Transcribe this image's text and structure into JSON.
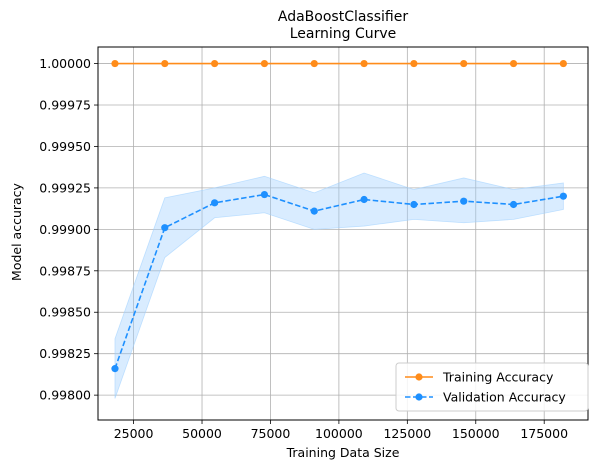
{
  "chart_data": {
    "type": "line",
    "title": "AdaBoostClassifier\n Learning Curve",
    "xlabel": "Training Data Size",
    "ylabel": "Model accuracy",
    "xlim": [
      12000,
      191000
    ],
    "ylim": [
      0.99785,
      1.0001
    ],
    "xticks": [
      25000,
      50000,
      75000,
      100000,
      125000,
      150000,
      175000
    ],
    "yticks": [
      0.998,
      0.99825,
      0.9985,
      0.99875,
      0.999,
      0.99925,
      0.9995,
      0.99975,
      1.0
    ],
    "xtick_labels": [
      "25000",
      "50000",
      "75000",
      "100000",
      "125000",
      "150000",
      "175000"
    ],
    "ytick_labels": [
      "0.99800",
      "0.99825",
      "0.99850",
      "0.99875",
      "0.99900",
      "0.99925",
      "0.99950",
      "0.99975",
      "1.00000"
    ],
    "grid": true,
    "legend_position": "lower right",
    "x": [
      18200,
      36400,
      54600,
      72800,
      91000,
      109200,
      127400,
      145600,
      163800,
      182000
    ],
    "series": [
      {
        "name": "Training Accuracy",
        "color": "#ff8c1a",
        "linestyle": "solid",
        "marker": "circle",
        "values": [
          1.0,
          1.0,
          1.0,
          1.0,
          1.0,
          1.0,
          1.0,
          1.0,
          1.0,
          1.0
        ]
      },
      {
        "name": "Validation Accuracy",
        "color": "#1e90ff",
        "linestyle": "dashed",
        "marker": "circle",
        "values": [
          0.99816,
          0.99901,
          0.99916,
          0.99921,
          0.99911,
          0.99918,
          0.99915,
          0.99917,
          0.99915,
          0.9992
        ],
        "band_lower": [
          0.99798,
          0.99883,
          0.99907,
          0.9991,
          0.999,
          0.99902,
          0.99906,
          0.99904,
          0.99906,
          0.99912
        ],
        "band_upper": [
          0.99834,
          0.99919,
          0.99925,
          0.99932,
          0.99922,
          0.99934,
          0.99924,
          0.99931,
          0.99924,
          0.99928
        ],
        "band_color": "#9fd0ff"
      }
    ]
  }
}
